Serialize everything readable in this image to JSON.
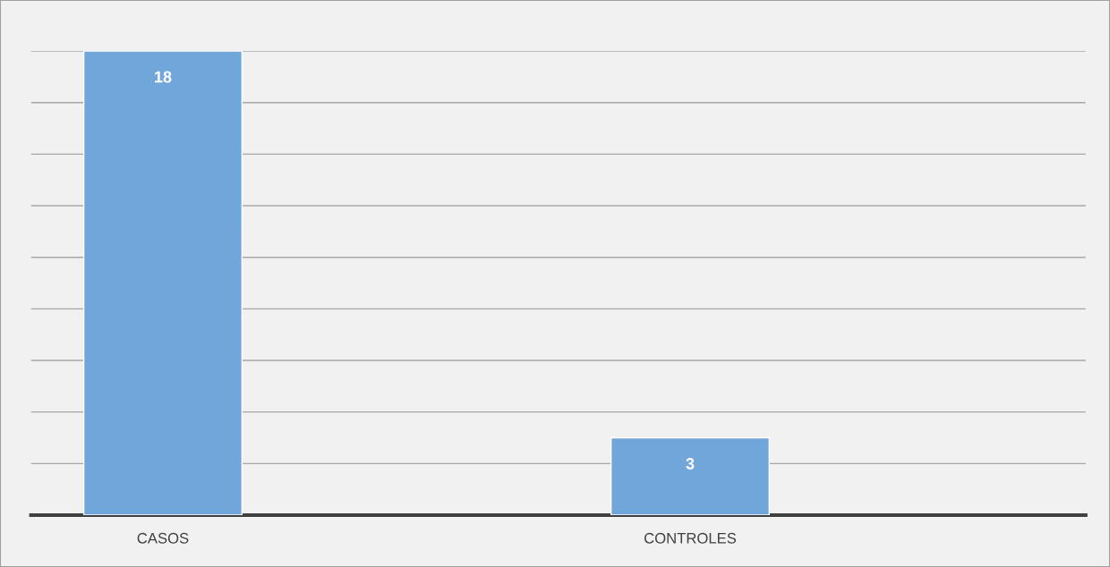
{
  "chart_data": {
    "type": "bar",
    "categories": [
      "CASOS",
      "CONTROLES"
    ],
    "values": [
      18,
      3
    ],
    "color": "#70a6da",
    "data_labels": true,
    "ylim": [
      0,
      18
    ],
    "yticks": [
      {
        "value": 0,
        "label": null
      },
      {
        "value": 2,
        "label": null
      },
      {
        "value": 4,
        "label": null
      },
      {
        "value": 6,
        "label": null
      },
      {
        "value": 8,
        "label": null
      },
      {
        "value": 10,
        "label": null
      },
      {
        "value": 12,
        "label": null
      },
      {
        "value": 14,
        "label": null
      },
      {
        "value": 16,
        "label": null
      },
      {
        "value": 18,
        "label": null
      }
    ],
    "grid": "y",
    "tick_labels": "x"
  }
}
